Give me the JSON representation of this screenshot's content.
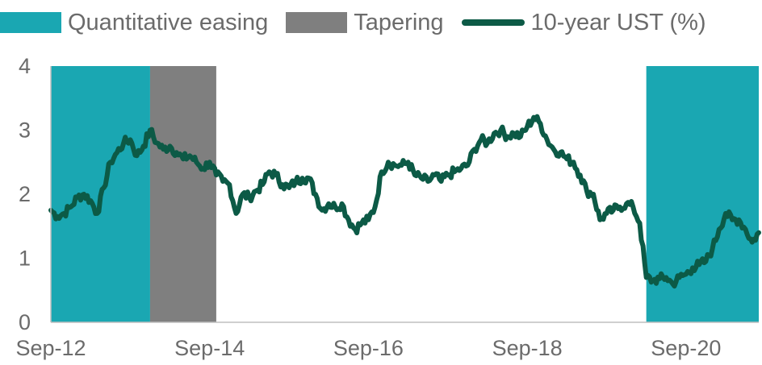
{
  "legend": {
    "qe_label": "Quantitative easing",
    "taper_label": "Tapering",
    "ust_label": "10-year UST (%)"
  },
  "colors": {
    "qe": "#1aa7b2",
    "taper": "#7f7f7f",
    "line": "#0c5a46",
    "axis": "#bfbfbf",
    "text": "#6b6b6b"
  },
  "chart_data": {
    "type": "line",
    "title": "",
    "xlabel": "",
    "ylabel": "",
    "xlim": [
      "2012-09",
      "2021-08"
    ],
    "ylim": [
      0,
      4
    ],
    "y_ticks": [
      0,
      1,
      2,
      3,
      4
    ],
    "x_ticks": [
      {
        "date": "2012-09",
        "label": "Sep-12"
      },
      {
        "date": "2014-09",
        "label": "Sep-14"
      },
      {
        "date": "2016-09",
        "label": "Sep-16"
      },
      {
        "date": "2018-09",
        "label": "Sep-18"
      },
      {
        "date": "2020-09",
        "label": "Sep-20"
      }
    ],
    "grid": false,
    "legend_position": "top",
    "shaded_regions": [
      {
        "name": "Quantitative easing",
        "start": "2012-09",
        "end": "2013-12"
      },
      {
        "name": "Tapering",
        "start": "2013-12",
        "end": "2014-10"
      },
      {
        "name": "Quantitative easing",
        "start": "2020-03",
        "end": "2021-08"
      }
    ],
    "series": [
      {
        "name": "10-year UST (%)",
        "x": [
          "2012-09",
          "2012-10",
          "2012-11",
          "2012-12",
          "2013-01",
          "2013-02",
          "2013-03",
          "2013-04",
          "2013-05",
          "2013-06",
          "2013-07",
          "2013-08",
          "2013-09",
          "2013-10",
          "2013-11",
          "2013-12",
          "2014-01",
          "2014-02",
          "2014-03",
          "2014-04",
          "2014-05",
          "2014-06",
          "2014-07",
          "2014-08",
          "2014-09",
          "2014-10",
          "2014-11",
          "2014-12",
          "2015-01",
          "2015-02",
          "2015-03",
          "2015-04",
          "2015-05",
          "2015-06",
          "2015-07",
          "2015-08",
          "2015-09",
          "2015-10",
          "2015-11",
          "2015-12",
          "2016-01",
          "2016-02",
          "2016-03",
          "2016-04",
          "2016-05",
          "2016-06",
          "2016-07",
          "2016-08",
          "2016-09",
          "2016-10",
          "2016-11",
          "2016-12",
          "2017-01",
          "2017-02",
          "2017-03",
          "2017-04",
          "2017-05",
          "2017-06",
          "2017-07",
          "2017-08",
          "2017-09",
          "2017-10",
          "2017-11",
          "2017-12",
          "2018-01",
          "2018-02",
          "2018-03",
          "2018-04",
          "2018-05",
          "2018-06",
          "2018-07",
          "2018-08",
          "2018-09",
          "2018-10",
          "2018-11",
          "2018-12",
          "2019-01",
          "2019-02",
          "2019-03",
          "2019-04",
          "2019-05",
          "2019-06",
          "2019-07",
          "2019-08",
          "2019-09",
          "2019-10",
          "2019-11",
          "2019-12",
          "2020-01",
          "2020-02",
          "2020-03",
          "2020-04",
          "2020-05",
          "2020-06",
          "2020-07",
          "2020-08",
          "2020-09",
          "2020-10",
          "2020-11",
          "2020-12",
          "2021-01",
          "2021-02",
          "2021-03",
          "2021-04",
          "2021-05",
          "2021-06",
          "2021-07",
          "2021-08"
        ],
        "values": [
          1.75,
          1.65,
          1.7,
          1.8,
          1.95,
          2.0,
          1.9,
          1.7,
          2.1,
          2.5,
          2.65,
          2.8,
          2.85,
          2.6,
          2.75,
          3.0,
          2.8,
          2.7,
          2.75,
          2.65,
          2.55,
          2.6,
          2.5,
          2.4,
          2.5,
          2.3,
          2.2,
          2.15,
          1.7,
          2.0,
          1.95,
          2.05,
          2.15,
          2.35,
          2.3,
          2.15,
          2.1,
          2.2,
          2.25,
          2.25,
          2.0,
          1.75,
          1.85,
          1.8,
          1.85,
          1.6,
          1.45,
          1.55,
          1.6,
          1.8,
          2.35,
          2.5,
          2.45,
          2.45,
          2.5,
          2.3,
          2.25,
          2.2,
          2.3,
          2.2,
          2.3,
          2.35,
          2.4,
          2.45,
          2.7,
          2.85,
          2.8,
          2.95,
          3.0,
          2.9,
          2.95,
          2.9,
          3.05,
          3.2,
          3.1,
          2.85,
          2.7,
          2.65,
          2.55,
          2.5,
          2.3,
          2.05,
          2.0,
          1.6,
          1.7,
          1.75,
          1.8,
          1.85,
          1.8,
          1.55,
          0.7,
          0.65,
          0.68,
          0.7,
          0.6,
          0.7,
          0.75,
          0.85,
          0.9,
          0.95,
          1.15,
          1.45,
          1.7,
          1.6,
          1.6,
          1.45,
          1.25,
          1.4
        ]
      }
    ]
  }
}
